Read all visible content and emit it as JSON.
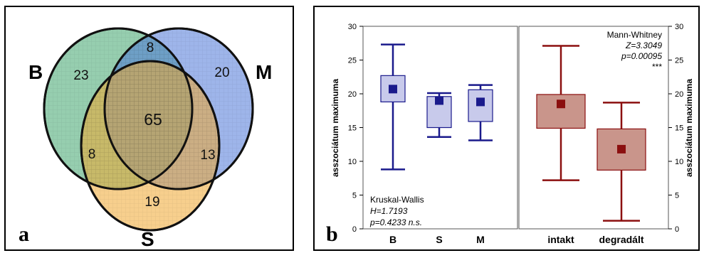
{
  "panel_a": {
    "letter": "a",
    "circle_labels": {
      "B": "B",
      "M": "M",
      "S": "S"
    },
    "colors": {
      "B": "#3fa56d",
      "M": "#4f78d8",
      "S": "#f0a830"
    }
  },
  "panel_b": {
    "letter": "b",
    "left_stat": {
      "test": "Kruskal-Wallis",
      "line2": "H=1.7193",
      "line3": "p=0.4233 n.s."
    },
    "right_stat": {
      "test": "Mann-Whitney",
      "line2": "Z=3.3049",
      "line3": "p=0.00095",
      "line4": "***"
    },
    "colors": {
      "left_dark": "#1a1a8c",
      "left_fill": "#c8caeb",
      "right_dark": "#8b0f0f",
      "right_fill": "#c9958b"
    }
  },
  "chart_data": [
    {
      "type": "venn",
      "sets": [
        "B",
        "M",
        "S"
      ],
      "regions": [
        {
          "sets": [
            "B"
          ],
          "value": 23
        },
        {
          "sets": [
            "M"
          ],
          "value": 20
        },
        {
          "sets": [
            "S"
          ],
          "value": 19
        },
        {
          "sets": [
            "B",
            "M"
          ],
          "value": 8
        },
        {
          "sets": [
            "B",
            "S"
          ],
          "value": 8
        },
        {
          "sets": [
            "M",
            "S"
          ],
          "value": 13
        },
        {
          "sets": [
            "B",
            "M",
            "S"
          ],
          "value": 65
        }
      ]
    },
    {
      "type": "box",
      "ylabel": "asszociátum maximuma",
      "ylim": [
        0,
        30
      ],
      "yticks": [
        0,
        5,
        10,
        15,
        20,
        25,
        30
      ],
      "categories": [
        "B",
        "S",
        "M"
      ],
      "boxes": [
        {
          "min": 8.8,
          "q1": 18.8,
          "median": 20.7,
          "q3": 22.7,
          "max": 27.3
        },
        {
          "min": 13.6,
          "q1": 15.0,
          "median": 19.0,
          "q3": 19.6,
          "max": 20.1
        },
        {
          "min": 13.1,
          "q1": 15.9,
          "median": 18.8,
          "q3": 20.6,
          "max": 21.3
        }
      ]
    },
    {
      "type": "box",
      "ylabel": "asszociátum maximuma",
      "ylim": [
        0,
        30
      ],
      "yticks": [
        0,
        5,
        10,
        15,
        20,
        25,
        30
      ],
      "categories": [
        "intakt",
        "degradált"
      ],
      "boxes": [
        {
          "min": 7.2,
          "q1": 14.9,
          "median": 18.5,
          "q3": 19.9,
          "max": 27.1
        },
        {
          "min": 1.2,
          "q1": 8.7,
          "median": 11.8,
          "q3": 14.8,
          "max": 18.7
        }
      ]
    }
  ]
}
